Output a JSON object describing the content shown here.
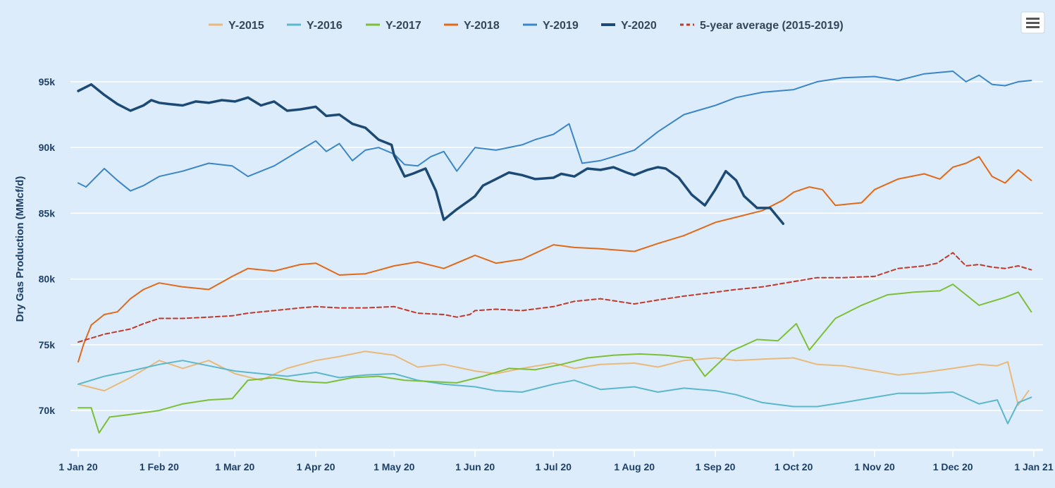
{
  "chart_data": {
    "type": "line",
    "title": "",
    "xlabel": "",
    "ylabel": "Dry Gas Production (MMcf/d)",
    "x_ticks": [
      "1 Jan 20",
      "1 Feb 20",
      "1 Mar 20",
      "1 Apr 20",
      "1 May 20",
      "1 Jun 20",
      "1 Jul 20",
      "1 Aug 20",
      "1 Sep 20",
      "1 Oct 20",
      "1 Nov 20",
      "1 Dec 20",
      "1 Jan 21"
    ],
    "y_ticks": [
      "70k",
      "75k",
      "80k",
      "85k",
      "90k",
      "95k"
    ],
    "y_tick_values": [
      70000,
      75000,
      80000,
      85000,
      90000,
      95000
    ],
    "ylim": [
      67000,
      98000
    ],
    "x_range_days": [
      0,
      366
    ],
    "legend_position": "top-center",
    "grid": true,
    "series": [
      {
        "name": "Y-2015",
        "color": "#e8b97a",
        "dashed": false,
        "width": 2,
        "x": [
          0,
          10,
          20,
          31,
          40,
          50,
          60,
          70,
          80,
          91,
          100,
          110,
          121,
          130,
          140,
          152,
          160,
          170,
          182,
          190,
          200,
          213,
          222,
          232,
          244,
          252,
          262,
          274,
          283,
          293,
          305,
          314,
          324,
          335,
          345,
          352,
          356,
          360,
          364
        ],
        "y": [
          72000,
          71500,
          72500,
          73800,
          73200,
          73800,
          72800,
          72300,
          73200,
          73800,
          74100,
          74500,
          74200,
          73300,
          73500,
          73000,
          72800,
          73200,
          73600,
          73200,
          73500,
          73600,
          73300,
          73800,
          74000,
          73800,
          73900,
          74000,
          73500,
          73400,
          73000,
          72700,
          72900,
          73200,
          73500,
          73400,
          73700,
          70400,
          71500
        ]
      },
      {
        "name": "Y-2016",
        "color": "#5bb7cc",
        "dashed": false,
        "width": 2,
        "x": [
          0,
          10,
          20,
          31,
          40,
          50,
          60,
          70,
          80,
          91,
          100,
          110,
          121,
          130,
          140,
          152,
          160,
          170,
          182,
          190,
          200,
          213,
          222,
          232,
          244,
          252,
          262,
          274,
          283,
          293,
          305,
          314,
          324,
          335,
          345,
          352,
          356,
          360,
          365
        ],
        "y": [
          72000,
          72600,
          73000,
          73500,
          73800,
          73400,
          73000,
          72800,
          72600,
          72900,
          72500,
          72700,
          72800,
          72300,
          72000,
          71800,
          71500,
          71400,
          72000,
          72300,
          71600,
          71800,
          71400,
          71700,
          71500,
          71200,
          70600,
          70300,
          70300,
          70600,
          71000,
          71300,
          71300,
          71400,
          70500,
          70800,
          69000,
          70600,
          71000
        ]
      },
      {
        "name": "Y-2017",
        "color": "#7cbf37",
        "dashed": false,
        "width": 2,
        "x": [
          0,
          5,
          8,
          12,
          20,
          31,
          40,
          50,
          59,
          65,
          75,
          85,
          95,
          105,
          115,
          125,
          135,
          145,
          155,
          165,
          175,
          185,
          195,
          205,
          215,
          225,
          235,
          240,
          250,
          260,
          268,
          275,
          280,
          290,
          300,
          310,
          320,
          330,
          335,
          345,
          350,
          355,
          360,
          365
        ],
        "y": [
          70200,
          70200,
          68300,
          69500,
          69700,
          70000,
          70500,
          70800,
          70900,
          72300,
          72500,
          72200,
          72100,
          72500,
          72600,
          72300,
          72200,
          72100,
          72600,
          73200,
          73100,
          73500,
          74000,
          74200,
          74300,
          74200,
          74000,
          72600,
          74500,
          75400,
          75300,
          76600,
          74600,
          77000,
          78000,
          78800,
          79000,
          79100,
          79600,
          78000,
          78300,
          78600,
          79000,
          77500
        ]
      },
      {
        "name": "Y-2018",
        "color": "#e06a1a",
        "dashed": false,
        "width": 2,
        "x": [
          0,
          2,
          5,
          10,
          15,
          20,
          25,
          31,
          40,
          50,
          59,
          65,
          75,
          85,
          91,
          100,
          110,
          121,
          130,
          140,
          152,
          160,
          170,
          182,
          190,
          200,
          213,
          222,
          232,
          244,
          252,
          262,
          270,
          274,
          280,
          285,
          290,
          300,
          305,
          314,
          324,
          330,
          335,
          340,
          345,
          350,
          355,
          360,
          365
        ],
        "y": [
          73700,
          75000,
          76500,
          77300,
          77500,
          78500,
          79200,
          79700,
          79400,
          79200,
          80200,
          80800,
          80600,
          81100,
          81200,
          80300,
          80400,
          81000,
          81300,
          80800,
          81800,
          81200,
          81500,
          82600,
          82400,
          82300,
          82100,
          82700,
          83300,
          84300,
          84700,
          85200,
          86000,
          86600,
          87000,
          86800,
          85600,
          85800,
          86800,
          87600,
          88000,
          87600,
          88500,
          88800,
          89300,
          87800,
          87300,
          88300,
          87500
        ]
      },
      {
        "name": "Y-2019",
        "color": "#3a86c8",
        "dashed": false,
        "width": 2,
        "x": [
          0,
          3,
          10,
          15,
          20,
          25,
          31,
          40,
          50,
          59,
          65,
          75,
          85,
          91,
          95,
          100,
          105,
          110,
          115,
          121,
          125,
          130,
          135,
          140,
          145,
          152,
          160,
          170,
          175,
          182,
          188,
          193,
          200,
          205,
          213,
          222,
          232,
          244,
          252,
          262,
          274,
          283,
          293,
          305,
          314,
          324,
          335,
          340,
          345,
          350,
          355,
          360,
          365
        ],
        "y": [
          87300,
          87000,
          88400,
          87500,
          86700,
          87100,
          87800,
          88200,
          88800,
          88600,
          87800,
          88600,
          89800,
          90500,
          89700,
          90300,
          89000,
          89800,
          90000,
          89500,
          88700,
          88600,
          89300,
          89700,
          88200,
          90000,
          89800,
          90200,
          90600,
          91000,
          91800,
          88800,
          89000,
          89300,
          89800,
          91200,
          92500,
          93200,
          93800,
          94200,
          94400,
          95000,
          95300,
          95400,
          95100,
          95600,
          95800,
          95000,
          95500,
          94800,
          94700,
          95000,
          95100
        ]
      },
      {
        "name": "Y-2020",
        "color": "#1c4a75",
        "dashed": false,
        "width": 3.5,
        "x": [
          0,
          5,
          10,
          15,
          20,
          25,
          28,
          31,
          35,
          40,
          45,
          50,
          55,
          60,
          65,
          70,
          75,
          80,
          85,
          91,
          95,
          100,
          105,
          110,
          115,
          120,
          121,
          125,
          128,
          133,
          137,
          140,
          145,
          150,
          152,
          155,
          160,
          165,
          170,
          175,
          182,
          185,
          190,
          195,
          200,
          205,
          210,
          213,
          218,
          222,
          225,
          230,
          235,
          240,
          244,
          248,
          252,
          255,
          260,
          265,
          270
        ],
        "y": [
          94300,
          94800,
          94000,
          93300,
          92800,
          93200,
          93600,
          93400,
          93300,
          93200,
          93500,
          93400,
          93600,
          93500,
          93800,
          93200,
          93500,
          92800,
          92900,
          93100,
          92400,
          92500,
          91800,
          91500,
          90600,
          90200,
          89400,
          87800,
          88000,
          88400,
          86700,
          84500,
          85300,
          86000,
          86300,
          87100,
          87600,
          88100,
          87900,
          87600,
          87700,
          88000,
          87800,
          88400,
          88300,
          88500,
          88100,
          87900,
          88300,
          88500,
          88400,
          87700,
          86400,
          85600,
          86800,
          88200,
          87500,
          86300,
          85400,
          85400,
          84200
        ]
      },
      {
        "name": "5-year average (2015-2019)",
        "color": "#c0392b",
        "dashed": true,
        "width": 2,
        "x": [
          0,
          5,
          10,
          15,
          20,
          25,
          31,
          40,
          50,
          59,
          65,
          75,
          85,
          91,
          100,
          110,
          121,
          130,
          140,
          145,
          150,
          152,
          160,
          170,
          182,
          190,
          200,
          213,
          222,
          232,
          244,
          252,
          262,
          274,
          283,
          293,
          305,
          314,
          324,
          329,
          335,
          340,
          345,
          350,
          355,
          360,
          365
        ],
        "y": [
          75200,
          75500,
          75800,
          76000,
          76200,
          76600,
          77000,
          77000,
          77100,
          77200,
          77400,
          77600,
          77800,
          77900,
          77800,
          77800,
          77900,
          77400,
          77300,
          77100,
          77300,
          77600,
          77700,
          77600,
          77900,
          78300,
          78500,
          78100,
          78400,
          78700,
          79000,
          79200,
          79400,
          79800,
          80100,
          80100,
          80200,
          80800,
          81000,
          81200,
          82000,
          81000,
          81100,
          80900,
          80800,
          81000,
          80700
        ]
      }
    ]
  },
  "menu": {
    "icon": "hamburger-menu-icon"
  }
}
